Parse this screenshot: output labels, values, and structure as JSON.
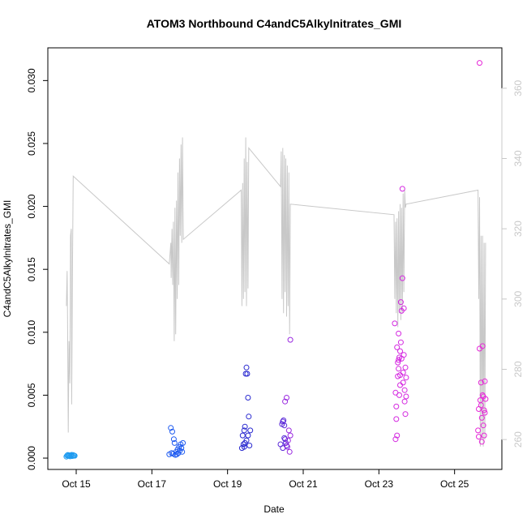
{
  "chart_data": {
    "type": "scatter",
    "title": "ATOM3 Northbound C4andC5Alkylnitrates_GMI",
    "xlabel": "Date",
    "ylabel": "C4andC5Alkylnitrates_GMI",
    "x_tick_labels": [
      "Oct 15",
      "Oct 17",
      "Oct 19",
      "Oct 21",
      "Oct 23",
      "Oct 25"
    ],
    "x_tick_days": [
      15,
      17,
      19,
      21,
      23,
      25
    ],
    "xlim_days": [
      14.25,
      26.25
    ],
    "ylim": [
      -0.0009,
      0.0326
    ],
    "y_ticks": [
      0.0,
      0.005,
      0.01,
      0.015,
      0.02,
      0.025,
      0.03
    ],
    "y_tick_labels": [
      "0.000",
      "0.005",
      "0.010",
      "0.015",
      "0.020",
      "0.025",
      "0.030"
    ],
    "y2_ticks": [
      260,
      280,
      300,
      320,
      340,
      360
    ],
    "y2lim": [
      251.5,
      371.5
    ],
    "y2_color": "#c8c8c8",
    "grid": false,
    "point_colors": [
      "#1e9bf0",
      "#1e5af0",
      "#2a2ad0",
      "#5a28d8",
      "#9a2ae0",
      "#d428e0",
      "#e628d8"
    ],
    "scatter_groups": [
      {
        "color": "#1e9bf0",
        "points": [
          [
            14.74,
            0.00012
          ],
          [
            14.76,
            0.0002
          ],
          [
            14.78,
            0.00025
          ],
          [
            14.8,
            0.00018
          ],
          [
            14.82,
            0.00022
          ],
          [
            14.84,
            0.00014
          ],
          [
            14.86,
            0.0002
          ],
          [
            14.88,
            0.00026
          ],
          [
            14.9,
            0.00016
          ],
          [
            14.92,
            0.00024
          ],
          [
            14.94,
            0.0002
          ],
          [
            14.96,
            0.00019
          ]
        ]
      },
      {
        "color": "#1e5af0",
        "points": [
          [
            17.46,
            0.0003
          ],
          [
            17.5,
            0.0024
          ],
          [
            17.52,
            0.0004
          ],
          [
            17.54,
            0.0021
          ],
          [
            17.56,
            0.00035
          ],
          [
            17.58,
            0.0015
          ],
          [
            17.6,
            0.0012
          ],
          [
            17.62,
            0.00025
          ],
          [
            17.64,
            0.0005
          ],
          [
            17.66,
            0.0003
          ],
          [
            17.68,
            0.0007
          ],
          [
            17.7,
            0.0004
          ],
          [
            17.72,
            0.0009
          ],
          [
            17.74,
            0.0006
          ],
          [
            17.76,
            0.0011
          ],
          [
            17.78,
            0.0008
          ],
          [
            17.8,
            0.0005
          ],
          [
            17.82,
            0.0012
          ]
        ]
      },
      {
        "color": "#2a2ad0",
        "points": [
          [
            19.38,
            0.0008
          ],
          [
            19.4,
            0.0018
          ],
          [
            19.42,
            0.0011
          ],
          [
            19.44,
            0.0022
          ],
          [
            19.46,
            0.0025
          ],
          [
            19.48,
            0.0067
          ],
          [
            19.5,
            0.0072
          ],
          [
            19.52,
            0.0067
          ],
          [
            19.54,
            0.0048
          ],
          [
            19.56,
            0.0033
          ],
          [
            19.44,
            0.0009
          ],
          [
            19.46,
            0.0012
          ],
          [
            19.58,
            0.001
          ],
          [
            19.6,
            0.0022
          ],
          [
            19.5,
            0.0014
          ],
          [
            19.54,
            0.0018
          ]
        ]
      },
      {
        "color": "#5a28d8",
        "points": [
          [
            20.4,
            0.0011
          ],
          [
            20.44,
            0.0027
          ],
          [
            20.46,
            0.0029
          ],
          [
            20.48,
            0.003
          ],
          [
            20.5,
            0.0026
          ],
          [
            20.52,
            0.0015
          ],
          [
            20.54,
            0.0012
          ],
          [
            20.56,
            0.001
          ],
          [
            20.46,
            0.0008
          ],
          [
            20.5,
            0.0016
          ]
        ]
      },
      {
        "color": "#9a2ae0",
        "points": [
          [
            20.52,
            0.0045
          ],
          [
            20.56,
            0.0048
          ],
          [
            20.58,
            0.0009
          ],
          [
            20.6,
            0.0014
          ],
          [
            20.62,
            0.0022
          ],
          [
            20.64,
            0.0005
          ],
          [
            20.66,
            0.0094
          ],
          [
            20.66,
            0.0018
          ]
        ]
      },
      {
        "color": "#d428e0",
        "points": [
          [
            23.42,
            0.0107
          ],
          [
            23.44,
            0.0052
          ],
          [
            23.44,
            0.0015
          ],
          [
            23.46,
            0.0031
          ],
          [
            23.46,
            0.0041
          ],
          [
            23.48,
            0.0018
          ],
          [
            23.48,
            0.0088
          ],
          [
            23.5,
            0.0065
          ],
          [
            23.5,
            0.0076
          ],
          [
            23.52,
            0.0099
          ],
          [
            23.52,
            0.0071
          ],
          [
            23.54,
            0.008
          ],
          [
            23.54,
            0.005
          ],
          [
            23.56,
            0.0085
          ],
          [
            23.56,
            0.0058
          ],
          [
            23.58,
            0.0092
          ],
          [
            23.58,
            0.0124
          ],
          [
            23.6,
            0.0117
          ],
          [
            23.6,
            0.0079
          ],
          [
            23.62,
            0.0214
          ],
          [
            23.62,
            0.0143
          ],
          [
            23.64,
            0.0068
          ],
          [
            23.64,
            0.006
          ],
          [
            23.66,
            0.0119
          ],
          [
            23.66,
            0.0082
          ],
          [
            23.68,
            0.0054
          ],
          [
            23.68,
            0.0045
          ],
          [
            23.7,
            0.0035
          ],
          [
            23.7,
            0.0072
          ],
          [
            23.72,
            0.0049
          ],
          [
            23.72,
            0.0064
          ],
          [
            23.52,
            0.0078
          ],
          [
            23.56,
            0.0066
          ]
        ]
      },
      {
        "color": "#e628d8",
        "points": [
          [
            25.62,
            0.0022
          ],
          [
            25.64,
            0.0017
          ],
          [
            25.64,
            0.0039
          ],
          [
            25.66,
            0.0087
          ],
          [
            25.66,
            0.0314
          ],
          [
            25.68,
            0.0046
          ],
          [
            25.7,
            0.006
          ],
          [
            25.7,
            0.0042
          ],
          [
            25.72,
            0.0032
          ],
          [
            25.72,
            0.0013
          ],
          [
            25.74,
            0.0089
          ],
          [
            25.74,
            0.005
          ],
          [
            25.76,
            0.0026
          ],
          [
            25.76,
            0.0049
          ],
          [
            25.78,
            0.0018
          ],
          [
            25.78,
            0.0038
          ],
          [
            25.8,
            0.0061
          ],
          [
            25.8,
            0.0036
          ],
          [
            25.82,
            0.0047
          ]
        ]
      }
    ],
    "line_series": {
      "color": "#c8c8c8",
      "points": [
        [
          14.74,
          298
        ],
        [
          14.76,
          308
        ],
        [
          14.77,
          295
        ],
        [
          14.79,
          262
        ],
        [
          14.81,
          288
        ],
        [
          14.83,
          276
        ],
        [
          14.85,
          318
        ],
        [
          14.87,
          320
        ],
        [
          14.88,
          270
        ],
        [
          14.9,
          306
        ],
        [
          14.92,
          335
        ],
        [
          17.46,
          310
        ],
        [
          17.5,
          316
        ],
        [
          17.51,
          306
        ],
        [
          17.53,
          320
        ],
        [
          17.55,
          304
        ],
        [
          17.57,
          322
        ],
        [
          17.59,
          288
        ],
        [
          17.61,
          326
        ],
        [
          17.63,
          290
        ],
        [
          17.65,
          328
        ],
        [
          17.67,
          300
        ],
        [
          17.69,
          336
        ],
        [
          17.71,
          304
        ],
        [
          17.73,
          340
        ],
        [
          17.75,
          318
        ],
        [
          17.77,
          344
        ],
        [
          17.79,
          316
        ],
        [
          17.81,
          346
        ],
        [
          17.83,
          317
        ],
        [
          19.36,
          331
        ],
        [
          19.38,
          298
        ],
        [
          19.4,
          333
        ],
        [
          19.42,
          300
        ],
        [
          19.44,
          340
        ],
        [
          19.46,
          302
        ],
        [
          19.48,
          346
        ],
        [
          19.5,
          298
        ],
        [
          19.52,
          339
        ],
        [
          19.54,
          303
        ],
        [
          19.56,
          343
        ],
        [
          20.4,
          332
        ],
        [
          20.42,
          342
        ],
        [
          20.44,
          300
        ],
        [
          20.46,
          343
        ],
        [
          20.48,
          296
        ],
        [
          20.5,
          341
        ],
        [
          20.52,
          302
        ],
        [
          20.54,
          340
        ],
        [
          20.56,
          295
        ],
        [
          20.58,
          338
        ],
        [
          20.6,
          298
        ],
        [
          20.62,
          336
        ],
        [
          20.64,
          290
        ],
        [
          20.66,
          327
        ],
        [
          23.4,
          324
        ],
        [
          23.42,
          300
        ],
        [
          23.44,
          322
        ],
        [
          23.46,
          296
        ],
        [
          23.48,
          323
        ],
        [
          23.5,
          292
        ],
        [
          23.52,
          325
        ],
        [
          23.54,
          296
        ],
        [
          23.56,
          327
        ],
        [
          23.58,
          294
        ],
        [
          23.6,
          326
        ],
        [
          23.62,
          296
        ],
        [
          23.64,
          330
        ],
        [
          23.66,
          302
        ],
        [
          23.68,
          331
        ],
        [
          23.7,
          326
        ],
        [
          23.72,
          327
        ],
        [
          25.62,
          331
        ],
        [
          25.64,
          300
        ],
        [
          25.66,
          329
        ],
        [
          25.68,
          258
        ],
        [
          25.7,
          318
        ],
        [
          25.72,
          260
        ],
        [
          25.74,
          318
        ],
        [
          25.76,
          258
        ],
        [
          25.78,
          316
        ],
        [
          25.8,
          260
        ],
        [
          25.82,
          316
        ]
      ]
    }
  }
}
